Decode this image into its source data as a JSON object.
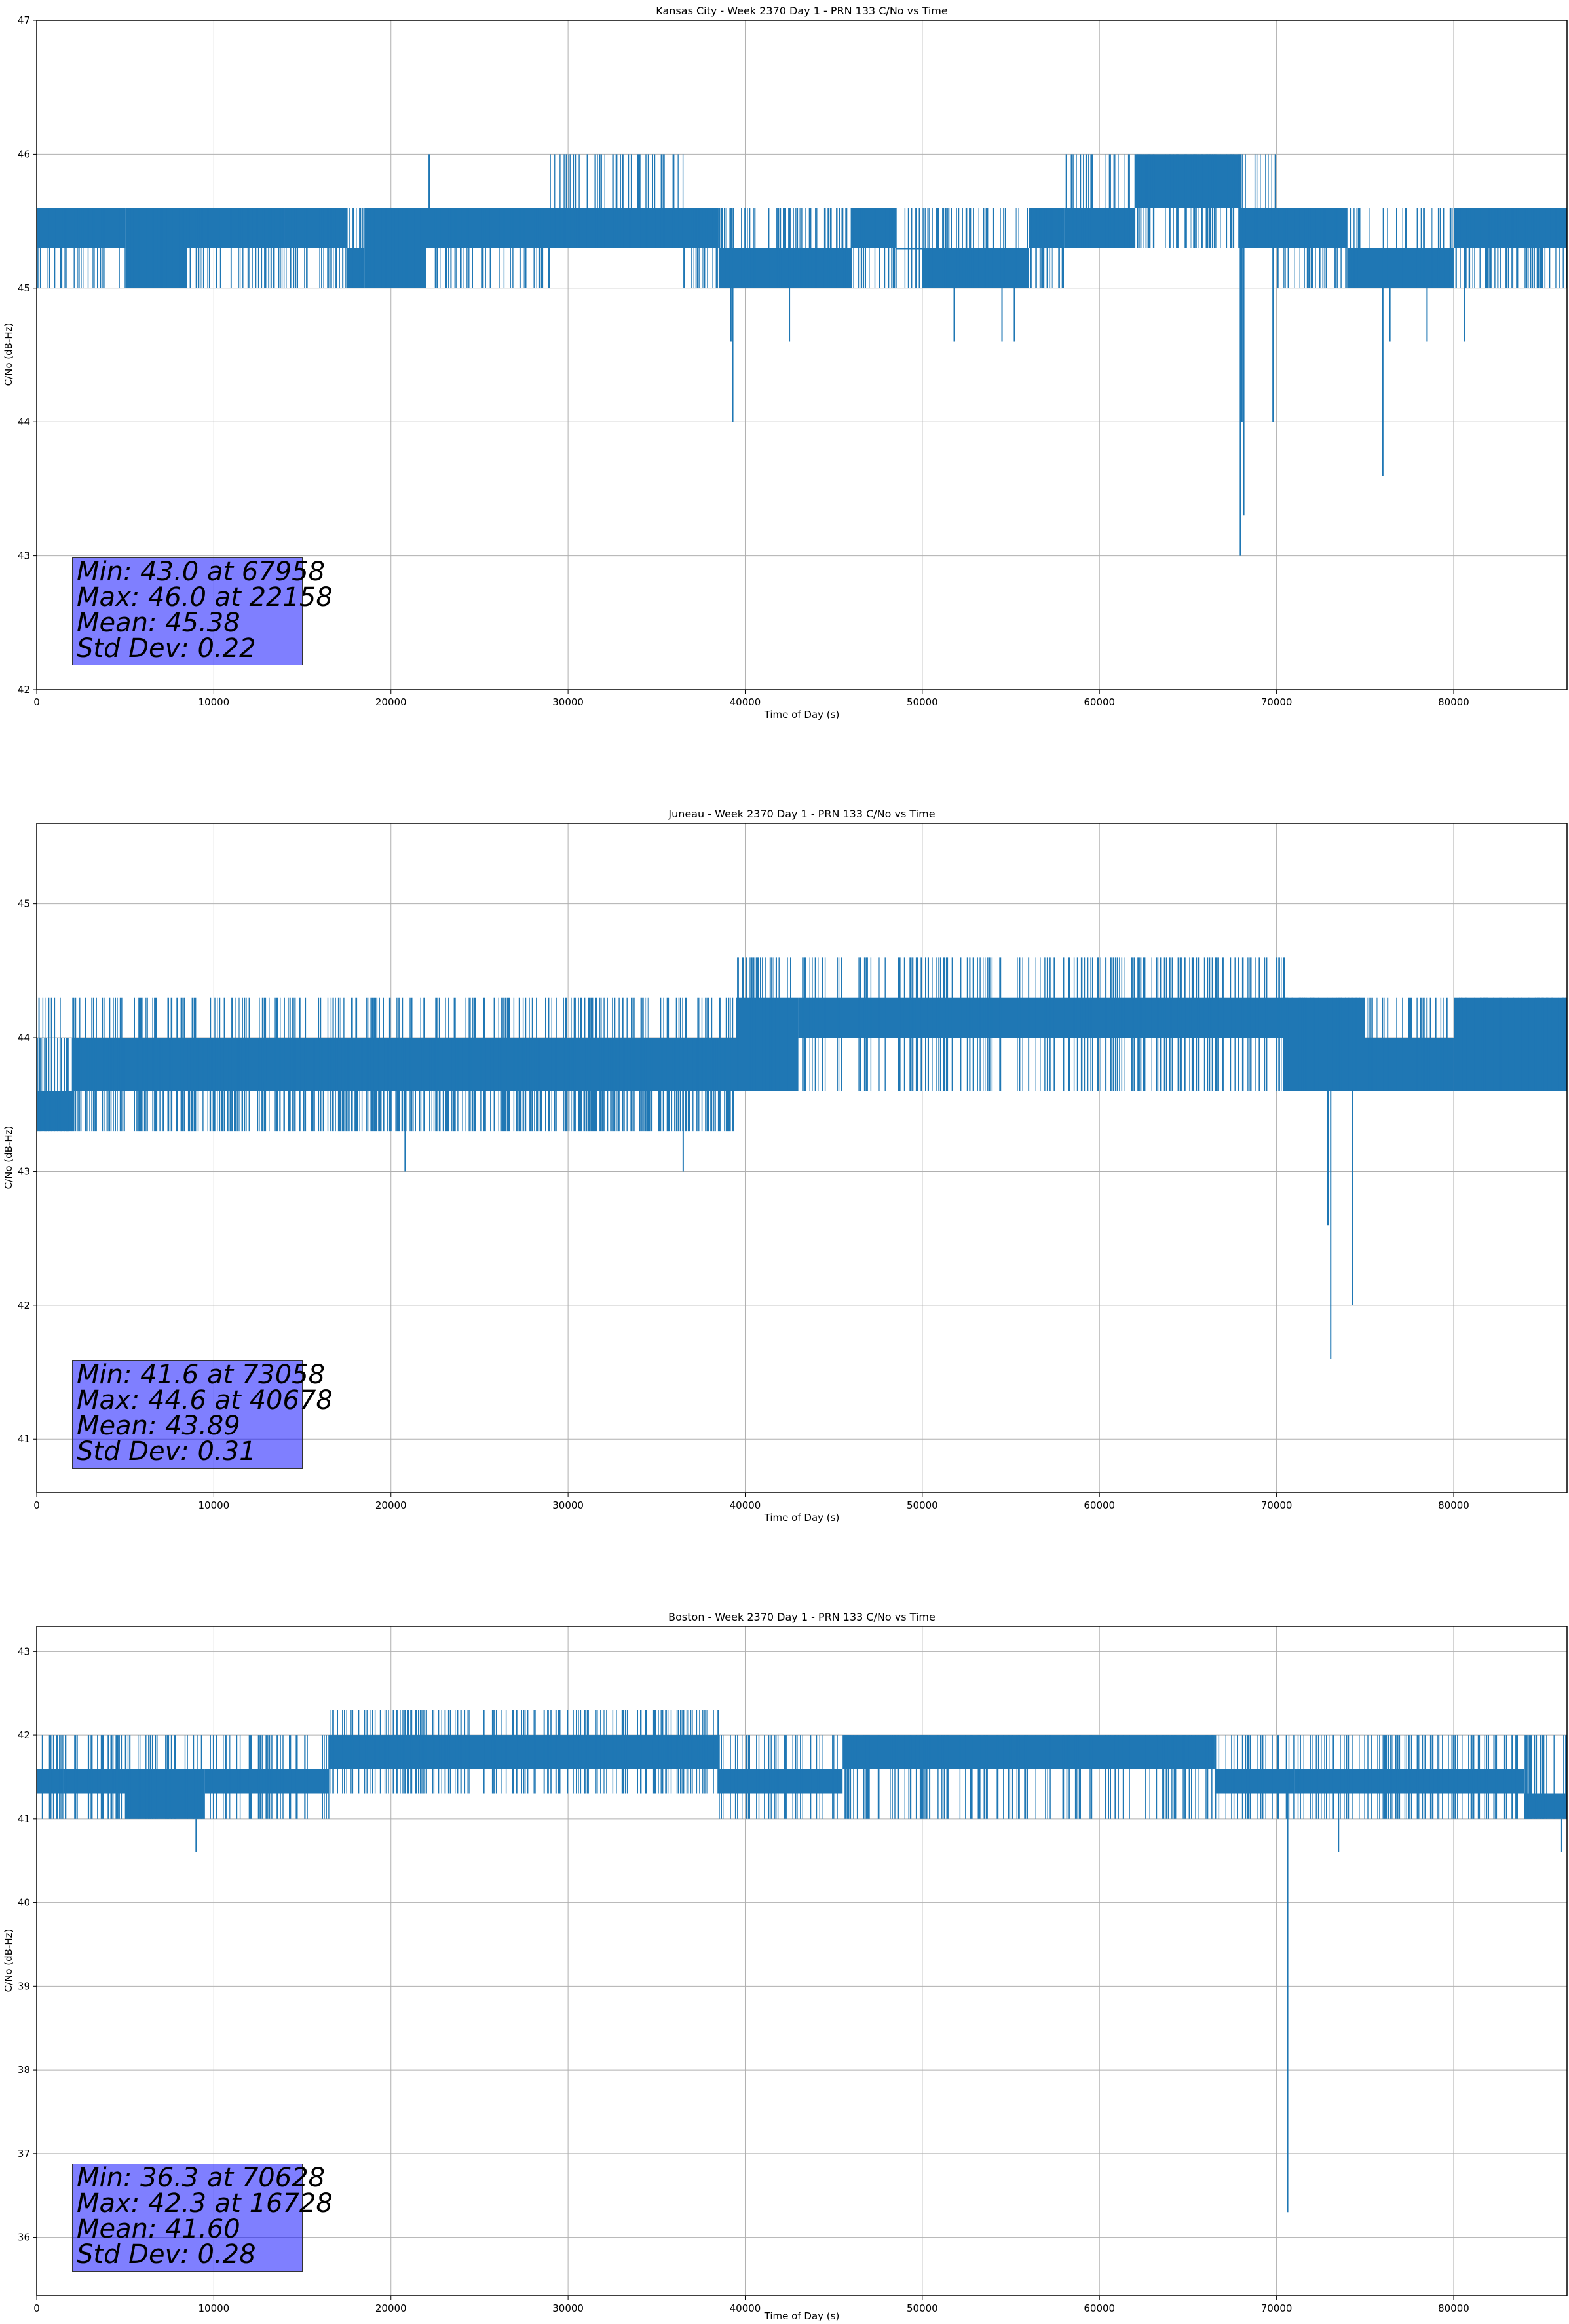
{
  "chart_data": [
    {
      "type": "line",
      "title": "Kansas City - Week 2370 Day 1 - PRN 133 C/No vs Time",
      "xlabel": "Time of Day (s)",
      "ylabel": "C/No (dB-Hz)",
      "xlim": [
        0,
        86400
      ],
      "ylim": [
        42,
        47
      ],
      "xticks": [
        0,
        10000,
        20000,
        30000,
        40000,
        50000,
        60000,
        70000,
        80000
      ],
      "yticks": [
        42,
        43,
        44,
        45,
        46,
        47
      ],
      "grid": true,
      "series_color": "#1f77b4",
      "series": [
        {
          "band_segments": [
            {
              "x0": 0,
              "x1": 5000,
              "lo": 45.3,
              "hi": 45.6
            },
            {
              "x0": 5000,
              "x1": 8500,
              "lo": 45.0,
              "hi": 45.6
            },
            {
              "x0": 8500,
              "x1": 14000,
              "lo": 45.3,
              "hi": 45.6
            },
            {
              "x0": 14000,
              "x1": 17500,
              "lo": 45.3,
              "hi": 45.6
            },
            {
              "x0": 17500,
              "x1": 18500,
              "lo": 45.0,
              "hi": 45.3
            },
            {
              "x0": 18500,
              "x1": 22000,
              "lo": 45.0,
              "hi": 45.6
            },
            {
              "x0": 22000,
              "x1": 29000,
              "lo": 45.3,
              "hi": 45.6
            },
            {
              "x0": 29000,
              "x1": 36500,
              "lo": 45.3,
              "hi": 45.6
            },
            {
              "x0": 36500,
              "x1": 38500,
              "lo": 45.3,
              "hi": 45.6
            },
            {
              "x0": 38500,
              "x1": 42000,
              "lo": 45.0,
              "hi": 45.3
            },
            {
              "x0": 42000,
              "x1": 46000,
              "lo": 45.0,
              "hi": 45.3
            },
            {
              "x0": 46000,
              "x1": 48500,
              "lo": 45.3,
              "hi": 45.6
            },
            {
              "x0": 48500,
              "x1": 50000,
              "lo": 45.3,
              "hi": 45.3
            },
            {
              "x0": 50000,
              "x1": 56000,
              "lo": 45.0,
              "hi": 45.3
            },
            {
              "x0": 56000,
              "x1": 58000,
              "lo": 45.3,
              "hi": 45.6
            },
            {
              "x0": 58000,
              "x1": 62000,
              "lo": 45.3,
              "hi": 45.6
            },
            {
              "x0": 62000,
              "x1": 68000,
              "lo": 45.6,
              "hi": 46.0
            },
            {
              "x0": 68000,
              "x1": 74000,
              "lo": 45.3,
              "hi": 45.6
            },
            {
              "x0": 74000,
              "x1": 80000,
              "lo": 45.0,
              "hi": 45.3
            },
            {
              "x0": 80000,
              "x1": 86400,
              "lo": 45.3,
              "hi": 45.6
            }
          ],
          "flicker": [
            {
              "x0": 0,
              "x1": 22000,
              "lo": 45.0,
              "hi": 45.6
            },
            {
              "x0": 22000,
              "x1": 29000,
              "lo": 45.0,
              "hi": 45.6
            },
            {
              "x0": 29000,
              "x1": 36500,
              "lo": 45.3,
              "hi": 46.0
            },
            {
              "x0": 36500,
              "x1": 50000,
              "lo": 45.0,
              "hi": 45.6
            },
            {
              "x0": 50000,
              "x1": 58000,
              "lo": 45.0,
              "hi": 45.6
            },
            {
              "x0": 58000,
              "x1": 70000,
              "lo": 45.3,
              "hi": 46.0
            },
            {
              "x0": 70000,
              "x1": 86400,
              "lo": 45.0,
              "hi": 45.6
            }
          ],
          "spikes": [
            {
              "x": 22158,
              "y": 46.0
            },
            {
              "x": 39300,
              "y": 44.0
            },
            {
              "x": 39200,
              "y": 44.6
            },
            {
              "x": 42500,
              "y": 44.6
            },
            {
              "x": 51800,
              "y": 44.6
            },
            {
              "x": 54500,
              "y": 44.6
            },
            {
              "x": 55200,
              "y": 44.6
            },
            {
              "x": 67958,
              "y": 43.0
            },
            {
              "x": 68150,
              "y": 43.3
            },
            {
              "x": 68050,
              "y": 44.0
            },
            {
              "x": 69800,
              "y": 44.0
            },
            {
              "x": 76000,
              "y": 43.6
            },
            {
              "x": 76400,
              "y": 44.6
            },
            {
              "x": 78500,
              "y": 44.6
            },
            {
              "x": 80600,
              "y": 44.6
            }
          ]
        }
      ],
      "stats": {
        "min": "Min: 43.0 at 67958",
        "max": "Max: 46.0 at 22158",
        "mean": "Mean: 45.38",
        "std": "Std Dev: 0.22"
      }
    },
    {
      "type": "line",
      "title": "Juneau - Week 2370 Day 1 - PRN 133 C/No vs Time",
      "xlabel": "Time of Day (s)",
      "ylabel": "C/No (dB-Hz)",
      "xlim": [
        0,
        86400
      ],
      "ylim": [
        40.6,
        45.6
      ],
      "xticks": [
        0,
        10000,
        20000,
        30000,
        40000,
        50000,
        60000,
        70000,
        80000
      ],
      "yticks": [
        41,
        42,
        43,
        44,
        45
      ],
      "grid": true,
      "series_color": "#1f77b4",
      "series": [
        {
          "band_segments": [
            {
              "x0": 0,
              "x1": 2000,
              "lo": 43.3,
              "hi": 43.6
            },
            {
              "x0": 2000,
              "x1": 39500,
              "lo": 43.6,
              "hi": 44.0
            },
            {
              "x0": 39500,
              "x1": 43000,
              "lo": 43.6,
              "hi": 44.3
            },
            {
              "x0": 43000,
              "x1": 70500,
              "lo": 44.0,
              "hi": 44.3
            },
            {
              "x0": 70500,
              "x1": 75000,
              "lo": 43.6,
              "hi": 44.3
            },
            {
              "x0": 75000,
              "x1": 80000,
              "lo": 43.6,
              "hi": 44.0
            },
            {
              "x0": 80000,
              "x1": 86400,
              "lo": 43.6,
              "hi": 44.3
            }
          ],
          "flicker": [
            {
              "x0": 0,
              "x1": 39500,
              "lo": 43.3,
              "hi": 44.0
            },
            {
              "x0": 0,
              "x1": 39500,
              "lo": 43.3,
              "hi": 44.3
            },
            {
              "x0": 39500,
              "x1": 70500,
              "lo": 43.6,
              "hi": 44.6
            },
            {
              "x0": 70500,
              "x1": 86400,
              "lo": 43.6,
              "hi": 44.3
            }
          ],
          "spikes": [
            {
              "x": 20800,
              "y": 43.0
            },
            {
              "x": 36500,
              "y": 43.0
            },
            {
              "x": 73058,
              "y": 41.6
            },
            {
              "x": 72900,
              "y": 42.6
            },
            {
              "x": 74300,
              "y": 42.0
            }
          ]
        }
      ],
      "stats": {
        "min": "Min: 41.6 at 73058",
        "max": "Max: 44.6 at 40678",
        "mean": "Mean: 43.89",
        "std": "Std Dev: 0.31"
      }
    },
    {
      "type": "line",
      "title": "Boston - Week 2370 Day 1 - PRN 133 C/No vs Time",
      "xlabel": "Time of Day (s)",
      "ylabel": "C/No (dB-Hz)",
      "xlim": [
        0,
        86400
      ],
      "ylim": [
        35.3,
        43.3
      ],
      "xticks": [
        0,
        10000,
        20000,
        30000,
        40000,
        50000,
        60000,
        70000,
        80000
      ],
      "yticks": [
        36,
        37,
        38,
        39,
        40,
        41,
        42,
        43
      ],
      "grid": true,
      "series_color": "#1f77b4",
      "series": [
        {
          "band_segments": [
            {
              "x0": 0,
              "x1": 1500,
              "lo": 41.3,
              "hi": 41.6
            },
            {
              "x0": 1500,
              "x1": 5000,
              "lo": 41.3,
              "hi": 41.6
            },
            {
              "x0": 5000,
              "x1": 9500,
              "lo": 41.0,
              "hi": 41.6
            },
            {
              "x0": 9500,
              "x1": 16500,
              "lo": 41.3,
              "hi": 41.6
            },
            {
              "x0": 16500,
              "x1": 38500,
              "lo": 41.6,
              "hi": 42.0
            },
            {
              "x0": 38500,
              "x1": 45500,
              "lo": 41.3,
              "hi": 41.6
            },
            {
              "x0": 45500,
              "x1": 66500,
              "lo": 41.6,
              "hi": 42.0
            },
            {
              "x0": 66500,
              "x1": 71000,
              "lo": 41.3,
              "hi": 41.6
            },
            {
              "x0": 71000,
              "x1": 84000,
              "lo": 41.3,
              "hi": 41.6
            },
            {
              "x0": 84000,
              "x1": 86400,
              "lo": 41.0,
              "hi": 41.3
            }
          ],
          "flicker": [
            {
              "x0": 0,
              "x1": 16500,
              "lo": 41.0,
              "hi": 42.0
            },
            {
              "x0": 16500,
              "x1": 38500,
              "lo": 41.3,
              "hi": 42.3
            },
            {
              "x0": 38500,
              "x1": 66500,
              "lo": 41.0,
              "hi": 42.0
            },
            {
              "x0": 66500,
              "x1": 86400,
              "lo": 41.0,
              "hi": 42.0
            }
          ],
          "spikes": [
            {
              "x": 9000,
              "y": 40.6
            },
            {
              "x": 16728,
              "y": 42.3
            },
            {
              "x": 70628,
              "y": 36.3
            },
            {
              "x": 73500,
              "y": 40.6
            },
            {
              "x": 86100,
              "y": 40.6
            }
          ]
        }
      ],
      "stats": {
        "min": "Min: 36.3 at 70628",
        "max": "Max: 42.3 at 16728",
        "mean": "Mean: 41.60",
        "std": "Std Dev: 0.28"
      }
    }
  ]
}
